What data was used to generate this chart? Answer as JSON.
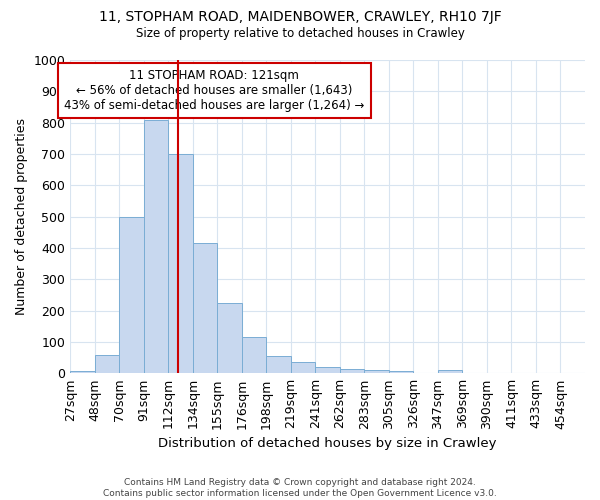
{
  "title1": "11, STOPHAM ROAD, MAIDENBOWER, CRAWLEY, RH10 7JF",
  "title2": "Size of property relative to detached houses in Crawley",
  "xlabel": "Distribution of detached houses by size in Crawley",
  "ylabel": "Number of detached properties",
  "bins": [
    "27sqm",
    "48sqm",
    "70sqm",
    "91sqm",
    "112sqm",
    "134sqm",
    "155sqm",
    "176sqm",
    "198sqm",
    "219sqm",
    "241sqm",
    "262sqm",
    "283sqm",
    "305sqm",
    "326sqm",
    "347sqm",
    "369sqm",
    "390sqm",
    "411sqm",
    "433sqm",
    "454sqm"
  ],
  "values": [
    8,
    60,
    500,
    810,
    700,
    415,
    225,
    115,
    55,
    35,
    20,
    13,
    10,
    8,
    0,
    10,
    0,
    0,
    0,
    0,
    0
  ],
  "bar_color": "#c8d8ef",
  "bar_edge_color": "#7aadd4",
  "red_line_color": "#cc0000",
  "annotation_title": "11 STOPHAM ROAD: 121sqm",
  "annotation_line1": "← 56% of detached houses are smaller (1,643)",
  "annotation_line2": "43% of semi-detached houses are larger (1,264) →",
  "annotation_box_color": "#ffffff",
  "annotation_box_edge_color": "#cc0000",
  "ylim": [
    0,
    1000
  ],
  "background_color": "#ffffff",
  "grid_color": "#d8e4f0",
  "footer": "Contains HM Land Registry data © Crown copyright and database right 2024.\nContains public sector information licensed under the Open Government Licence v3.0."
}
